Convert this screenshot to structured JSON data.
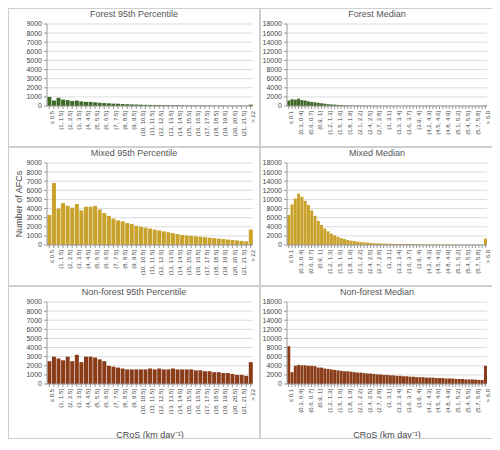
{
  "chart_data": [
    {
      "type": "bar",
      "title": "Forest 95th Percentile",
      "color": "#3b6a27",
      "grid": true,
      "categories": [
        "≤ 0.5",
        null,
        "(1, 1.5]",
        null,
        "(2, 2.5]",
        null,
        "(3, 3.5]",
        null,
        "(4, 4.5]",
        null,
        "(5, 5.5]",
        null,
        "(6, 6.5]",
        null,
        "(7, 7.5]",
        null,
        "(8, 8.5]",
        null,
        "(9, 9.5]",
        null,
        "(10, 10.5]",
        null,
        "(11, 11.5]",
        null,
        "(12, 12.5]",
        null,
        "(13, 13.5]",
        null,
        "(14, 14.5]",
        null,
        "(15, 15.5]",
        null,
        "(16, 16.5]",
        null,
        "(17, 17.5]",
        null,
        "(18, 18.5]",
        null,
        "(19, 19.5]",
        null,
        "(20, 20.5]",
        null,
        "(21, 21.5]",
        null,
        "> 22"
      ],
      "values": [
        1000,
        600,
        900,
        700,
        650,
        550,
        600,
        500,
        450,
        450,
        400,
        350,
        320,
        300,
        260,
        250,
        220,
        200,
        180,
        160,
        150,
        130,
        120,
        110,
        100,
        95,
        90,
        80,
        75,
        70,
        60,
        60,
        55,
        50,
        50,
        45,
        40,
        40,
        35,
        30,
        30,
        30,
        25,
        25,
        150
      ],
      "ylim": [
        0,
        9000
      ],
      "yticks": [
        0,
        1000,
        2000,
        3000,
        4000,
        5000,
        6000,
        7000,
        8000,
        9000
      ]
    },
    {
      "type": "bar",
      "title": "Forest Median",
      "color": "#3b6a27",
      "grid": true,
      "categories": [
        "≤ 0.1",
        null,
        null,
        "(0.3, 0.4]",
        null,
        null,
        "(0.6, 0.7]",
        null,
        null,
        "(0.9, 1]",
        null,
        null,
        "(1.2, 1.3]",
        null,
        null,
        "(1.5, 1.6]",
        null,
        null,
        "(1.8, 1.9]",
        null,
        null,
        "(2.1, 2.2]",
        null,
        null,
        "(2.4, 2.5]",
        null,
        null,
        "(2.7, 2.8]",
        null,
        null,
        "(3, 3.1]",
        null,
        null,
        "(3.3, 3.4]",
        null,
        null,
        "(3.6, 3.7]",
        null,
        null,
        "(3.9, 4]",
        null,
        null,
        "(4.2, 4.3]",
        null,
        null,
        "(4.5, 4.6]",
        null,
        null,
        "(4.8, 4.9]",
        null,
        null,
        "(5.1, 5.2]",
        null,
        null,
        "(5.4, 5.5]",
        null,
        null,
        "(5.7, 5.8]",
        null,
        null,
        "> 6.0"
      ],
      "values": [
        1200,
        1500,
        1400,
        1600,
        1300,
        1200,
        1000,
        900,
        800,
        700,
        600,
        500,
        400,
        350,
        300,
        250,
        200,
        150,
        120,
        100,
        90,
        80,
        70,
        60,
        55,
        50,
        45,
        40,
        35,
        30,
        30,
        25,
        25,
        20,
        20,
        20,
        15,
        15,
        15,
        10,
        10,
        10,
        10,
        10,
        10,
        5,
        5,
        5,
        5,
        5,
        5,
        5,
        5,
        5,
        5,
        5,
        5,
        5,
        5,
        5,
        100
      ],
      "ylim": [
        0,
        18000
      ],
      "yticks": [
        0,
        2000,
        4000,
        6000,
        8000,
        10000,
        12000,
        14000,
        16000,
        18000
      ]
    },
    {
      "type": "bar",
      "title": "Mixed 95th Percentile",
      "color": "#c9a22c",
      "grid": true,
      "ylabel": "Number of AFCs",
      "categories": [
        "≤ 0.5",
        null,
        "(1, 1.5]",
        null,
        "(2, 2.5]",
        null,
        "(3, 3.5]",
        null,
        "(4, 4.5]",
        null,
        "(5, 5.5]",
        null,
        "(6, 6.5]",
        null,
        "(7, 7.5]",
        null,
        "(8, 8.5]",
        null,
        "(9, 9.5]",
        null,
        "(10, 10.5]",
        null,
        "(11, 11.5]",
        null,
        "(12, 12.5]",
        null,
        "(13, 13.5]",
        null,
        "(14, 14.5]",
        null,
        "(15, 15.5]",
        null,
        "(16, 16.5]",
        null,
        "(17, 17.5]",
        null,
        "(18, 18.5]",
        null,
        "(19, 19.5]",
        null,
        "(20, 20.5]",
        null,
        "(21, 21.5]",
        null,
        "> 22"
      ],
      "values": [
        3300,
        6800,
        4000,
        4600,
        4300,
        4100,
        4500,
        3800,
        4200,
        4200,
        4300,
        3900,
        3500,
        3200,
        2900,
        2700,
        2600,
        2400,
        2300,
        2100,
        2000,
        1900,
        1800,
        1700,
        1600,
        1500,
        1400,
        1300,
        1200,
        1100,
        1050,
        1000,
        950,
        900,
        850,
        800,
        750,
        700,
        650,
        600,
        550,
        500,
        450,
        400,
        1700
      ],
      "ylim": [
        0,
        9000
      ],
      "yticks": [
        0,
        1000,
        2000,
        3000,
        4000,
        5000,
        6000,
        7000,
        8000,
        9000
      ]
    },
    {
      "type": "bar",
      "title": "Mixed Median",
      "color": "#c9a22c",
      "grid": true,
      "categories": [
        "≤ 0.1",
        null,
        null,
        "(0.3, 0.4]",
        null,
        null,
        "(0.6, 0.7]",
        null,
        null,
        "(0.9, 1]",
        null,
        null,
        "(1.2, 1.3]",
        null,
        null,
        "(1.5, 1.6]",
        null,
        null,
        "(1.8, 1.9]",
        null,
        null,
        "(2.1, 2.2]",
        null,
        null,
        "(2.4, 2.5]",
        null,
        null,
        "(2.7, 2.8]",
        null,
        null,
        "(3, 3.1]",
        null,
        null,
        "(3.3, 3.4]",
        null,
        null,
        "(3.6, 3.7]",
        null,
        null,
        "(3.9, 4]",
        null,
        null,
        "(4.2, 4.3]",
        null,
        null,
        "(4.5, 4.6]",
        null,
        null,
        "(4.8, 4.9]",
        null,
        null,
        "(5.1, 5.2]",
        null,
        null,
        "(5.4, 5.5]",
        null,
        null,
        "(5.7, 5.8]",
        null,
        null,
        "> 6.0"
      ],
      "values": [
        6600,
        8900,
        10200,
        11300,
        10600,
        9700,
        8800,
        7600,
        6400,
        5300,
        4400,
        3600,
        3000,
        2500,
        2100,
        1800,
        1500,
        1300,
        1100,
        950,
        850,
        750,
        650,
        580,
        520,
        470,
        420,
        380,
        350,
        320,
        290,
        270,
        250,
        230,
        210,
        200,
        190,
        180,
        170,
        160,
        150,
        140,
        130,
        120,
        115,
        110,
        105,
        100,
        95,
        90,
        85,
        80,
        75,
        70,
        65,
        60,
        58,
        55,
        52,
        50,
        1400
      ],
      "ylim": [
        0,
        18000
      ],
      "yticks": [
        0,
        2000,
        4000,
        6000,
        8000,
        10000,
        12000,
        14000,
        16000,
        18000
      ]
    },
    {
      "type": "bar",
      "title": "Non-forest 95th Percentile",
      "color": "#8a3b17",
      "grid": true,
      "xlabel": "CRoS (km day⁻¹)",
      "categories": [
        "≤ 0.5",
        null,
        "(1, 1.5]",
        null,
        "(2, 2.5]",
        null,
        "(3, 3.5]",
        null,
        "(4, 4.5]",
        null,
        "(5, 5.5]",
        null,
        "(6, 6.5]",
        null,
        "(7, 7.5]",
        null,
        "(8, 8.5]",
        null,
        "(9, 9.5]",
        null,
        "(10, 10.5]",
        null,
        "(11, 11.5]",
        null,
        "(12, 12.5]",
        null,
        "(13, 13.5]",
        null,
        "(14, 14.5]",
        null,
        "(15, 15.5]",
        null,
        "(16, 16.5]",
        null,
        "(17, 17.5]",
        null,
        "(18, 18.5]",
        null,
        "(19, 19.5]",
        null,
        "(20, 20.5]",
        null,
        "(21, 21.5]",
        null,
        "> 22"
      ],
      "values": [
        2500,
        3000,
        2800,
        2600,
        3000,
        2500,
        3200,
        2400,
        3000,
        3000,
        2900,
        2700,
        2500,
        2000,
        1900,
        1800,
        1700,
        1600,
        1600,
        1600,
        1600,
        1600,
        1700,
        1600,
        1700,
        1600,
        1600,
        1700,
        1600,
        1600,
        1600,
        1600,
        1500,
        1500,
        1400,
        1400,
        1300,
        1300,
        1200,
        1200,
        1100,
        1000,
        1000,
        900,
        2400
      ],
      "ylim": [
        0,
        9000
      ],
      "yticks": [
        0,
        1000,
        2000,
        3000,
        4000,
        5000,
        6000,
        7000,
        8000,
        9000
      ]
    },
    {
      "type": "bar",
      "title": "Non-forest Median",
      "color": "#8a3b17",
      "grid": true,
      "xlabel": "CRoS (km day⁻¹)",
      "categories": [
        "≤ 0.1",
        null,
        null,
        "(0.3, 0.4]",
        null,
        null,
        "(0.6, 0.7]",
        null,
        null,
        "(0.9, 1]",
        null,
        null,
        "(1.2, 1.3]",
        null,
        null,
        "(1.5, 1.6]",
        null,
        null,
        "(1.8, 1.9]",
        null,
        null,
        "(2.1, 2.2]",
        null,
        null,
        "(2.4, 2.5]",
        null,
        null,
        "(2.7, 2.8]",
        null,
        null,
        "(3, 3.1]",
        null,
        null,
        "(3.3, 3.4]",
        null,
        null,
        "(3.6, 3.7]",
        null,
        null,
        "(3.9, 4]",
        null,
        null,
        "(4.2, 4.3]",
        null,
        null,
        "(4.5, 4.6]",
        null,
        null,
        "(4.8, 4.9]",
        null,
        null,
        "(5.1, 5.2]",
        null,
        null,
        "(5.4, 5.5]",
        null,
        null,
        "(5.7, 5.8]",
        null,
        null,
        "> 6.0"
      ],
      "values": [
        8300,
        2600,
        4000,
        4200,
        4100,
        4100,
        4000,
        4000,
        3900,
        3600,
        3600,
        3400,
        3300,
        3200,
        3100,
        3000,
        2900,
        2800,
        2800,
        2700,
        2600,
        2500,
        2500,
        2400,
        2300,
        2300,
        2200,
        2100,
        2100,
        2000,
        2000,
        1900,
        1900,
        1800,
        1800,
        1700,
        1700,
        1600,
        1600,
        1500,
        1500,
        1500,
        1400,
        1400,
        1400,
        1300,
        1300,
        1300,
        1200,
        1200,
        1200,
        1100,
        1100,
        1100,
        1000,
        1000,
        1000,
        950,
        900,
        900,
        4000
      ],
      "ylim": [
        0,
        18000
      ],
      "yticks": [
        0,
        2000,
        4000,
        6000,
        8000,
        10000,
        12000,
        14000,
        16000,
        18000
      ]
    }
  ]
}
